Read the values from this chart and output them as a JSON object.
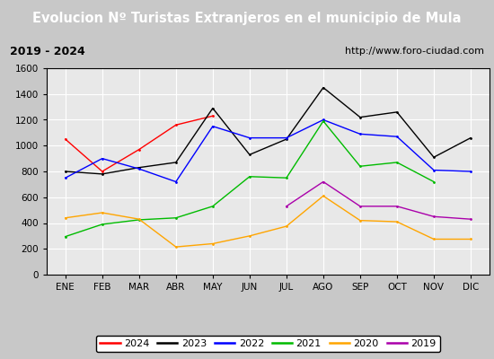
{
  "title": "Evolucion Nº Turistas Extranjeros en el municipio de Mula",
  "subtitle_left": "2019 - 2024",
  "subtitle_right": "http://www.foro-ciudad.com",
  "months": [
    "ENE",
    "FEB",
    "MAR",
    "ABR",
    "MAY",
    "JUN",
    "JUL",
    "AGO",
    "SEP",
    "OCT",
    "NOV",
    "DIC"
  ],
  "series": {
    "2024": [
      1050,
      800,
      970,
      1160,
      1230,
      null,
      null,
      null,
      null,
      null,
      null,
      null
    ],
    "2023": [
      800,
      780,
      830,
      870,
      1290,
      930,
      1050,
      1450,
      1220,
      1260,
      910,
      1060
    ],
    "2022": [
      750,
      900,
      820,
      720,
      1150,
      1060,
      1060,
      1200,
      1090,
      1070,
      810,
      800
    ],
    "2021": [
      295,
      390,
      425,
      440,
      530,
      760,
      750,
      1190,
      840,
      870,
      720,
      null
    ],
    "2020": [
      440,
      480,
      430,
      215,
      240,
      300,
      375,
      610,
      420,
      410,
      275,
      275
    ],
    "2019": [
      null,
      null,
      null,
      null,
      null,
      null,
      530,
      720,
      530,
      530,
      450,
      430
    ]
  },
  "colors": {
    "2024": "#ff0000",
    "2023": "#000000",
    "2022": "#0000ff",
    "2021": "#00bb00",
    "2020": "#ffa500",
    "2019": "#aa00aa"
  },
  "ylim": [
    0,
    1600
  ],
  "yticks": [
    0,
    200,
    400,
    600,
    800,
    1000,
    1200,
    1400,
    1600
  ],
  "title_bg": "#4a86c8",
  "title_color": "#ffffff",
  "subtitle_bg": "#e0e0e0",
  "plot_bg": "#e8e8e8",
  "grid_color": "#ffffff",
  "legend_order": [
    "2024",
    "2023",
    "2022",
    "2021",
    "2020",
    "2019"
  ],
  "fig_bg": "#c8c8c8"
}
